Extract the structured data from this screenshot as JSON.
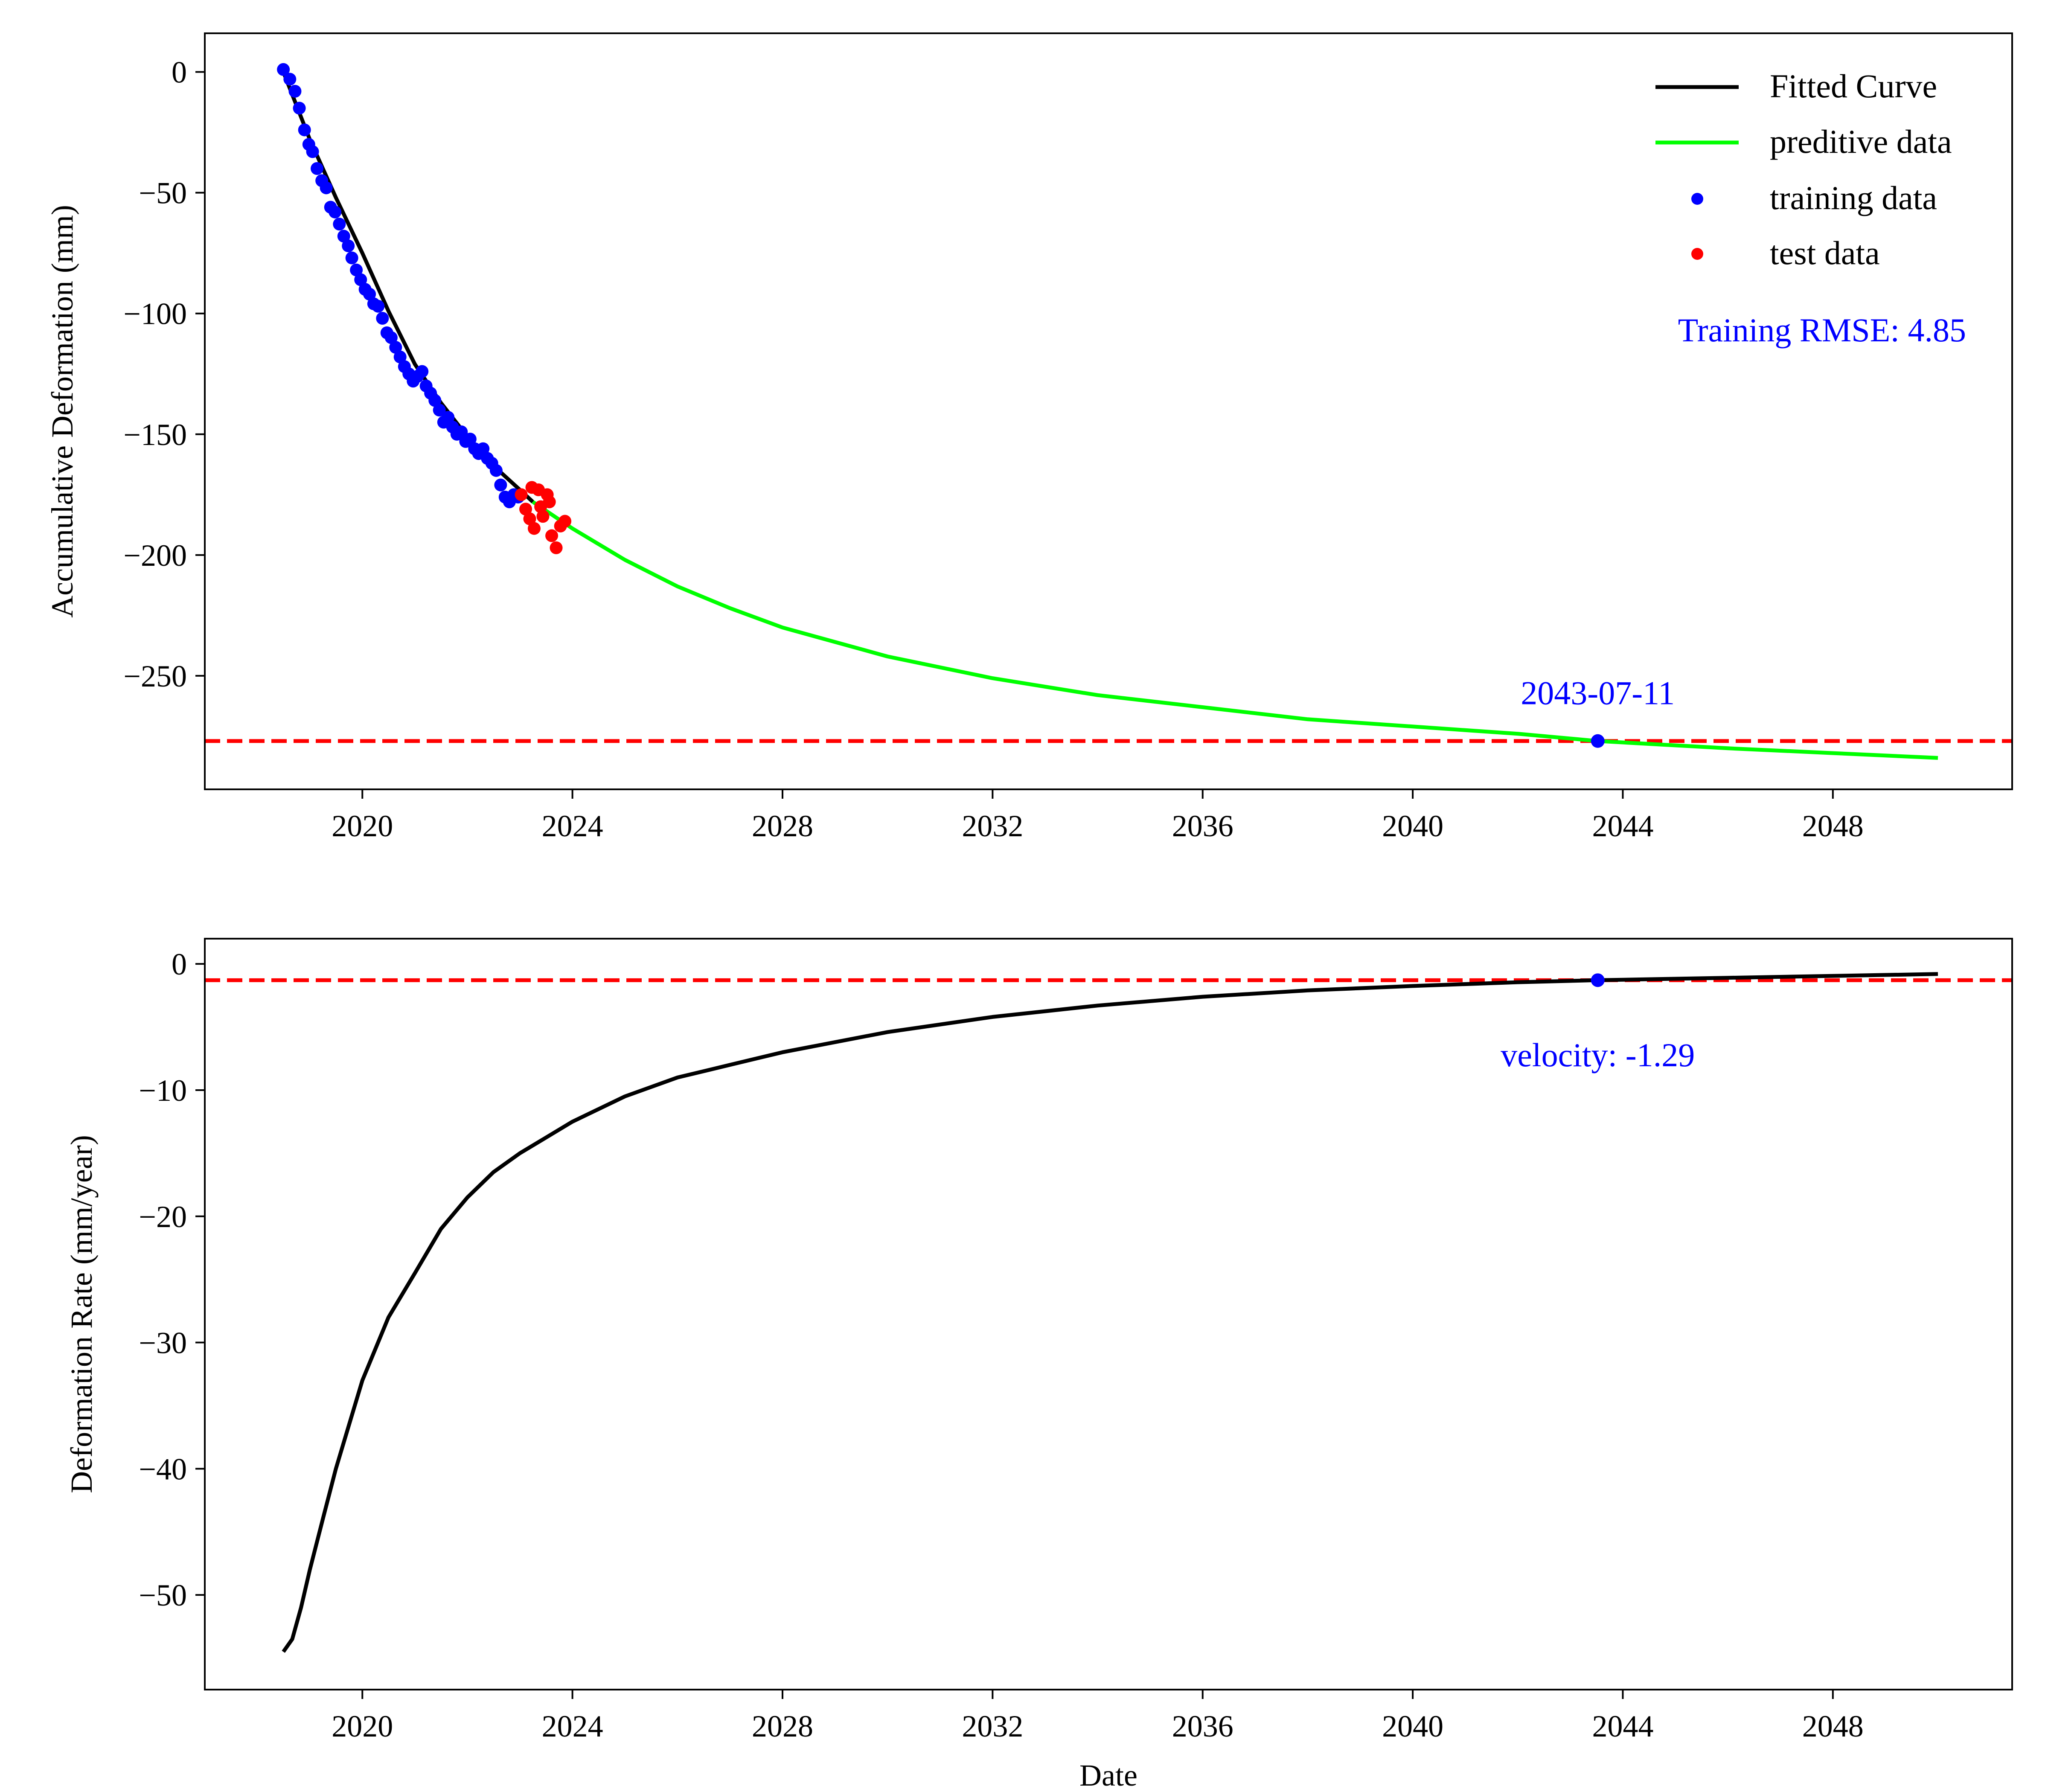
{
  "chart_data": [
    {
      "type": "line",
      "x_axis_type": "date",
      "ylabel": "Accumulative Deformation (mm)",
      "xlabel": "",
      "xlim": [
        "2017-01-01",
        "2051-06-01"
      ],
      "ylim": [
        -297,
        16
      ],
      "x_ticks": [
        "2020",
        "2024",
        "2028",
        "2032",
        "2036",
        "2040",
        "2044",
        "2048"
      ],
      "y_ticks": [
        0,
        -50,
        -100,
        -150,
        -200,
        -250
      ],
      "series": [
        {
          "name": "Fitted Curve",
          "kind": "line",
          "color": "#000000",
          "x": [
            "2018-07-01",
            "2018-10-01",
            "2019-01-01",
            "2019-07-01",
            "2020-01-01",
            "2020-07-01",
            "2021-01-01",
            "2021-07-01",
            "2022-01-01",
            "2022-07-01",
            "2023-01-01",
            "2023-04-01"
          ],
          "y": [
            0,
            -14,
            -28,
            -52,
            -75,
            -99,
            -121,
            -137,
            -151,
            -163,
            -173,
            -178
          ]
        },
        {
          "name": "preditive data",
          "kind": "line",
          "color": "#00ff00",
          "x": [
            "2023-04-01",
            "2024-01-01",
            "2025-01-01",
            "2026-01-01",
            "2027-01-01",
            "2028-01-01",
            "2030-01-01",
            "2032-01-01",
            "2034-01-01",
            "2036-01-01",
            "2038-01-01",
            "2040-01-01",
            "2042-01-01",
            "2043-07-11",
            "2046-01-01",
            "2048-01-01",
            "2050-01-01"
          ],
          "y": [
            -178,
            -189,
            -202,
            -213,
            -222,
            -230,
            -242,
            -251,
            -258,
            -263,
            -268,
            -271,
            -274,
            -277,
            -280,
            -282,
            -284
          ]
        },
        {
          "name": "training data",
          "kind": "scatter",
          "color": "#0000ff",
          "x": [
            "2018-07-01",
            "2018-08-15",
            "2018-09-20",
            "2018-10-20",
            "2018-11-25",
            "2018-12-25",
            "2019-01-20",
            "2019-02-20",
            "2019-03-25",
            "2019-04-25",
            "2019-05-25",
            "2019-06-25",
            "2019-07-25",
            "2019-08-25",
            "2019-09-25",
            "2019-10-20",
            "2019-11-20",
            "2019-12-20",
            "2020-01-20",
            "2020-02-20",
            "2020-03-20",
            "2020-04-20",
            "2020-05-20",
            "2020-06-20",
            "2020-07-20",
            "2020-08-20",
            "2020-09-20",
            "2020-10-20",
            "2020-11-20",
            "2020-12-20",
            "2021-01-20",
            "2021-02-20",
            "2021-03-20",
            "2021-04-20",
            "2021-05-20",
            "2021-06-20",
            "2021-07-20",
            "2021-08-20",
            "2021-09-20",
            "2021-10-20",
            "2021-11-20",
            "2021-12-20",
            "2022-01-20",
            "2022-02-20",
            "2022-03-20",
            "2022-04-20",
            "2022-05-20",
            "2022-06-20",
            "2022-07-20",
            "2022-08-20",
            "2022-09-20",
            "2022-10-20",
            "2022-11-20",
            "2022-12-20"
          ],
          "y": [
            1,
            -3,
            -8,
            -15,
            -24,
            -30,
            -33,
            -40,
            -45,
            -48,
            -56,
            -58,
            -63,
            -68,
            -72,
            -77,
            -82,
            -86,
            -90,
            -92,
            -96,
            -97,
            -102,
            -108,
            -110,
            -114,
            -118,
            -122,
            -125,
            -128,
            -126,
            -124,
            -130,
            -133,
            -136,
            -140,
            -145,
            -143,
            -147,
            -150,
            -149,
            -153,
            -152,
            -156,
            -158,
            -156,
            -160,
            -162,
            -165,
            -171,
            -176,
            -178,
            -175,
            -176
          ]
        },
        {
          "name": "test data",
          "kind": "scatter",
          "color": "#ff0000",
          "x": [
            "2023-01-10",
            "2023-02-10",
            "2023-03-10",
            "2023-04-10",
            "2023-05-10",
            "2023-06-10",
            "2023-07-10",
            "2023-08-10",
            "2023-09-10",
            "2023-10-10",
            "2023-11-10",
            "2023-03-25",
            "2023-05-25",
            "2023-07-25"
          ],
          "y": [
            -175,
            -181,
            -185,
            -189,
            -173,
            -184,
            -175,
            -192,
            -197,
            -188,
            -186,
            -172,
            -180,
            -178
          ]
        },
        {
          "name": "",
          "kind": "marker",
          "color": "#0000ff",
          "x": [
            "2043-07-11"
          ],
          "y": [
            -277
          ]
        }
      ],
      "hlines": [
        {
          "y": -277,
          "color": "#ff0000",
          "style": "dashed"
        }
      ],
      "annotations": [
        {
          "text": "Training RMSE: 4.85",
          "color": "#0000ff"
        },
        {
          "text": "2043-07-11",
          "x": "2043-07-11",
          "y": -257,
          "color": "#0000ff"
        }
      ],
      "legend": "top-right",
      "grid": false
    },
    {
      "type": "line",
      "x_axis_type": "date",
      "xlabel": "Date",
      "ylabel": "Deformation Rate (mm/year)",
      "xlim": [
        "2017-01-01",
        "2051-06-01"
      ],
      "ylim": [
        -57.5,
        2
      ],
      "x_ticks": [
        "2020",
        "2024",
        "2028",
        "2032",
        "2036",
        "2040",
        "2044",
        "2048"
      ],
      "y_ticks": [
        0,
        -10,
        -20,
        -30,
        -40,
        -50
      ],
      "series": [
        {
          "name": "",
          "kind": "line",
          "color": "#000000",
          "x": [
            "2018-07-01",
            "2018-09-01",
            "2018-11-01",
            "2019-01-01",
            "2019-04-01",
            "2019-07-01",
            "2019-10-01",
            "2020-01-01",
            "2020-07-01",
            "2021-01-01",
            "2021-07-01",
            "2022-01-01",
            "2022-07-01",
            "2023-01-01",
            "2024-01-01",
            "2025-01-01",
            "2026-01-01",
            "2027-01-01",
            "2028-01-01",
            "2030-01-01",
            "2032-01-01",
            "2034-01-01",
            "2036-01-01",
            "2038-01-01",
            "2040-01-01",
            "2042-01-01",
            "2043-07-11",
            "2046-01-01",
            "2048-01-01",
            "2050-01-01"
          ],
          "y": [
            -54.5,
            -53.5,
            -51,
            -48,
            -44,
            -40,
            -36.5,
            -33,
            -28,
            -24.5,
            -21,
            -18.5,
            -16.5,
            -15,
            -12.5,
            -10.5,
            -9,
            -8,
            -7,
            -5.4,
            -4.2,
            -3.3,
            -2.6,
            -2.1,
            -1.75,
            -1.45,
            -1.29,
            -1.1,
            -0.95,
            -0.8
          ]
        },
        {
          "name": "",
          "kind": "marker",
          "color": "#0000ff",
          "x": [
            "2043-07-11"
          ],
          "y": [
            -1.29
          ]
        }
      ],
      "hlines": [
        {
          "y": -1.29,
          "color": "#ff0000",
          "style": "dashed"
        }
      ],
      "annotations": [
        {
          "text": "velocity: -1.29",
          "x": "2043-07-11",
          "y": -7.2,
          "color": "#0000ff"
        }
      ],
      "grid": false
    }
  ]
}
